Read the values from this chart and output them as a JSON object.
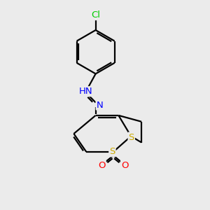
{
  "background_color": "#ebebeb",
  "bond_color": "#000000",
  "atom_colors": {
    "Cl": "#00cc00",
    "N": "#0000ff",
    "S": "#ccaa00",
    "O": "#ff0000"
  },
  "line_width": 1.6,
  "font_size": 9.5
}
